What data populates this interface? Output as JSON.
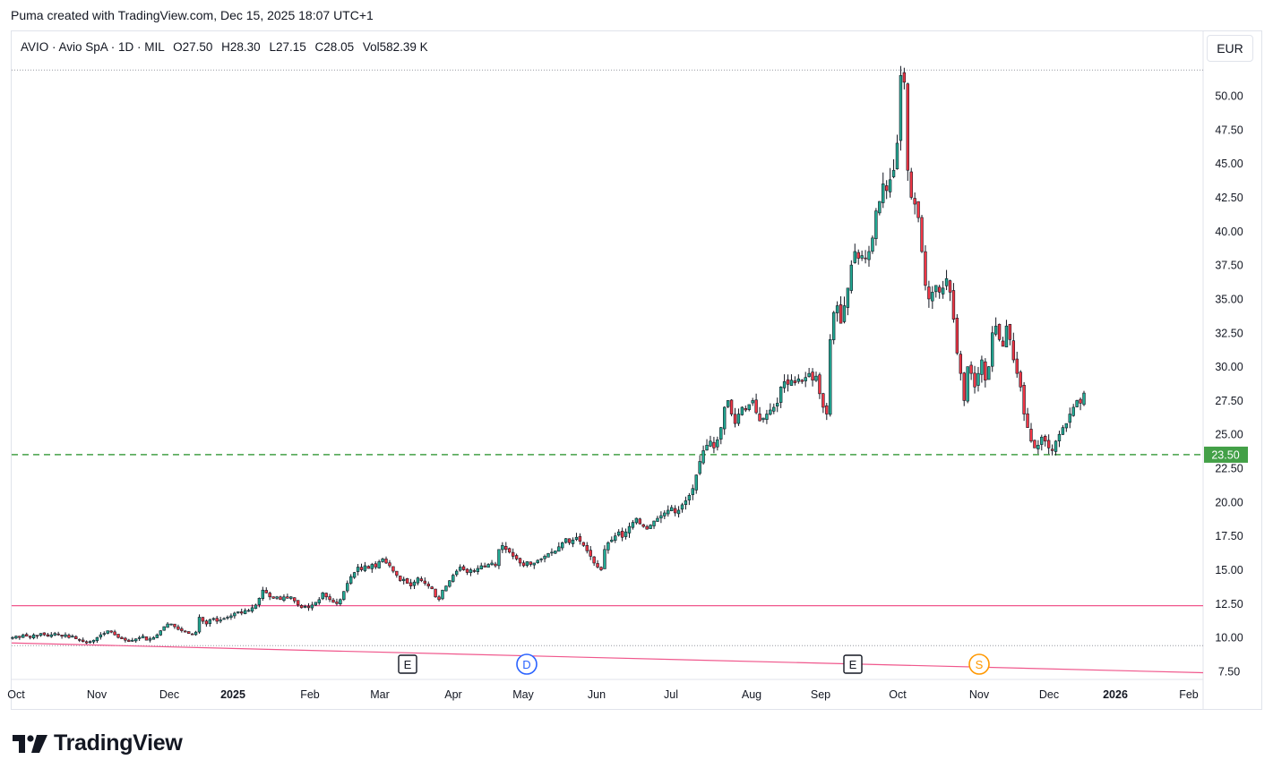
{
  "caption": "Puma created with TradingView.com, Dec 15, 2025 18:07 UTC+1",
  "header": {
    "symbol": "AVIO · Avio SpA · 1D · MIL",
    "open_label": "O",
    "open": "27.50",
    "high_label": "H",
    "high": "28.30",
    "low_label": "L",
    "low": "27.15",
    "close_label": "C",
    "close": "28.05",
    "vol_label": "Vol",
    "vol": "582.39 K"
  },
  "currency_button": "EUR",
  "brand": "TradingView",
  "colors": {
    "up": "#22ab94",
    "down": "#f23645",
    "candle_body_up": "#26a69a",
    "candle_dark": "#131722",
    "support": "#4caf50",
    "trend": "#f0578c",
    "accent": "#2962ff",
    "split": "#ff9800"
  },
  "chart_data": {
    "type": "candlestick",
    "ylim": [
      7.5,
      52.0
    ],
    "y_ticks": [
      "50.00",
      "47.50",
      "45.00",
      "42.50",
      "40.00",
      "37.50",
      "35.00",
      "32.50",
      "30.00",
      "27.50",
      "25.00",
      "22.50",
      "20.00",
      "17.50",
      "15.00",
      "12.50",
      "10.00",
      "7.50"
    ],
    "x_ticks": [
      {
        "label": "Oct",
        "bold": false
      },
      {
        "label": "Nov",
        "bold": false
      },
      {
        "label": "Dec",
        "bold": false
      },
      {
        "label": "2025",
        "bold": true
      },
      {
        "label": "Feb",
        "bold": false
      },
      {
        "label": "Mar",
        "bold": false
      },
      {
        "label": "Apr",
        "bold": false
      },
      {
        "label": "May",
        "bold": false
      },
      {
        "label": "Jun",
        "bold": false
      },
      {
        "label": "Jul",
        "bold": false
      },
      {
        "label": "Aug",
        "bold": false
      },
      {
        "label": "Sep",
        "bold": false
      },
      {
        "label": "Oct",
        "bold": false
      },
      {
        "label": "Nov",
        "bold": false
      },
      {
        "label": "Dec",
        "bold": false
      },
      {
        "label": "2026",
        "bold": true
      },
      {
        "label": "Feb",
        "bold": false
      }
    ],
    "support_level": {
      "value": 23.5,
      "label": "23.50"
    },
    "horizontal_line": 12.35,
    "trendline": {
      "start": 9.6,
      "end": 7.4
    },
    "high_marker": 51.9,
    "low_marker": 9.4,
    "events": [
      {
        "type": "E",
        "month": "Mar"
      },
      {
        "type": "D",
        "month": "May"
      },
      {
        "type": "E",
        "month": "Sep"
      },
      {
        "type": "S",
        "month": "Nov"
      }
    ],
    "closes": [
      10.0,
      10.1,
      10.0,
      10.2,
      10.1,
      10.0,
      10.2,
      10.1,
      10.3,
      10.2,
      10.1,
      10.2,
      10.3,
      10.2,
      10.1,
      10.2,
      10.0,
      10.1,
      9.9,
      9.8,
      9.7,
      9.6,
      9.7,
      9.8,
      10.0,
      10.2,
      10.3,
      10.5,
      10.4,
      10.2,
      10.0,
      9.9,
      9.8,
      9.7,
      9.8,
      9.9,
      10.0,
      10.1,
      9.8,
      9.9,
      10.0,
      10.2,
      10.5,
      10.8,
      11.0,
      11.0,
      10.8,
      10.6,
      10.5,
      10.4,
      10.3,
      10.2,
      10.4,
      11.5,
      11.2,
      11.0,
      11.3,
      11.4,
      11.2,
      11.3,
      11.4,
      11.5,
      11.6,
      11.8,
      11.9,
      11.8,
      12.0,
      12.0,
      12.2,
      12.4,
      12.9,
      13.5,
      13.3,
      13.0,
      12.9,
      13.0,
      12.8,
      13.0,
      12.9,
      13.0,
      12.7,
      12.4,
      12.2,
      12.3,
      12.2,
      12.4,
      12.6,
      12.8,
      13.3,
      13.0,
      12.8,
      12.6,
      12.5,
      12.8,
      13.4,
      14.0,
      14.5,
      14.8,
      15.2,
      15.0,
      15.3,
      15.1,
      15.4,
      15.2,
      15.6,
      15.8,
      15.5,
      15.3,
      14.9,
      14.6,
      14.2,
      14.3,
      14.0,
      13.8,
      14.1,
      14.4,
      14.2,
      14.0,
      13.8,
      13.6,
      13.0,
      12.8,
      13.5,
      13.8,
      14.2,
      14.6,
      14.9,
      15.2,
      15.0,
      14.8,
      15.0,
      14.9,
      15.1,
      15.3,
      15.2,
      15.4,
      15.5,
      15.3,
      16.5,
      16.8,
      16.5,
      16.3,
      16.0,
      15.8,
      15.5,
      15.3,
      15.6,
      15.4,
      15.5,
      15.7,
      15.8,
      16.0,
      16.2,
      16.3,
      16.4,
      16.7,
      17.0,
      17.3,
      17.0,
      17.2,
      17.4,
      17.1,
      16.8,
      16.4,
      16.0,
      15.5,
      15.2,
      15.0,
      16.5,
      17.0,
      17.2,
      17.5,
      17.8,
      17.4,
      17.8,
      18.2,
      18.5,
      18.8,
      18.4,
      18.2,
      18.0,
      18.3,
      18.6,
      18.8,
      19.0,
      19.2,
      19.4,
      19.6,
      19.2,
      19.4,
      19.8,
      20.1,
      20.5,
      21.0,
      22.0,
      23.0,
      23.8,
      24.2,
      24.5,
      24.0,
      24.6,
      25.5,
      27.0,
      27.5,
      26.5,
      25.8,
      26.5,
      27.0,
      26.8,
      27.2,
      27.5,
      26.6,
      26.0,
      26.2,
      26.5,
      26.8,
      27.0,
      27.3,
      28.5,
      28.9,
      28.7,
      29.0,
      28.8,
      29.1,
      28.9,
      29.2,
      29.5,
      29.0,
      29.3,
      28.0,
      27.0,
      26.5,
      32.0,
      34.0,
      34.5,
      33.2,
      34.5,
      35.8,
      37.5,
      38.5,
      38.0,
      38.2,
      38.0,
      38.5,
      39.5,
      41.5,
      42.2,
      43.5,
      43.0,
      43.8,
      44.5,
      46.5,
      51.5,
      51.0,
      44.5,
      42.5,
      42.0,
      41.0,
      38.5,
      36.0,
      35.0,
      35.5,
      36.0,
      35.5,
      35.8,
      36.5,
      35.5,
      33.5,
      31.0,
      29.5,
      27.5,
      30.0,
      29.5,
      28.5,
      29.5,
      30.5,
      29.0,
      30.0,
      32.5,
      33.0,
      32.0,
      31.5,
      33.0,
      32.0,
      30.5,
      29.5,
      28.5,
      26.5,
      25.5,
      24.5,
      24.0,
      24.2,
      24.8,
      24.5,
      24.0,
      23.8,
      24.5,
      25.0,
      25.5,
      25.8,
      26.5,
      27.0,
      27.5,
      27.3,
      28.05
    ]
  }
}
